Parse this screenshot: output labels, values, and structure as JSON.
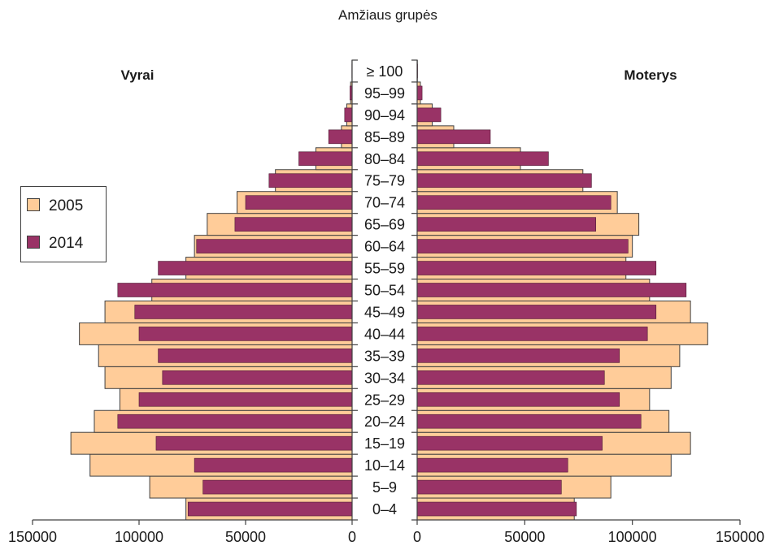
{
  "chart_data": {
    "type": "bar",
    "orientation": "horizontal",
    "title": "Amžiaus grupės",
    "categories": [
      "0–4",
      "5–9",
      "10–14",
      "15–19",
      "20–24",
      "25–29",
      "30–34",
      "35–39",
      "40–44",
      "45–49",
      "50–54",
      "55–59",
      "60–64",
      "65–69",
      "70–74",
      "75–79",
      "80–84",
      "85–89",
      "90–94",
      "95–99",
      "≥ 100"
    ],
    "left_panel": {
      "label": "Vyrai"
    },
    "right_panel": {
      "label": "Moterys"
    },
    "series": [
      {
        "name": "2005",
        "color": "#FFCC99",
        "left_values": [
          78000,
          95000,
          123000,
          132000,
          121000,
          109000,
          116000,
          119000,
          128000,
          116000,
          94000,
          78000,
          74000,
          68000,
          54000,
          36000,
          17000,
          5000,
          2500,
          700,
          50
        ],
        "right_values": [
          73000,
          90000,
          118000,
          127000,
          117000,
          108000,
          118000,
          122000,
          135000,
          127000,
          108000,
          97000,
          100000,
          103000,
          93000,
          77000,
          48000,
          17000,
          7000,
          1500,
          100
        ]
      },
      {
        "name": "2014",
        "color": "#993366",
        "left_values": [
          77000,
          70000,
          74000,
          92000,
          110000,
          100000,
          89000,
          91000,
          100000,
          102000,
          110000,
          91000,
          73000,
          55000,
          50000,
          39000,
          25000,
          11000,
          3500,
          1000,
          100
        ],
        "right_values": [
          74000,
          67000,
          70000,
          86000,
          104000,
          94000,
          87000,
          94000,
          107000,
          111000,
          125000,
          111000,
          98000,
          83000,
          90000,
          81000,
          61000,
          34000,
          11000,
          2300,
          200
        ]
      }
    ],
    "xlim": [
      0,
      150000
    ],
    "xticks": [
      0,
      50000,
      100000,
      150000
    ],
    "xlabel": "",
    "ylabel": "",
    "grid": false,
    "legend": {
      "position": "left"
    },
    "outline_color": "#404040"
  }
}
